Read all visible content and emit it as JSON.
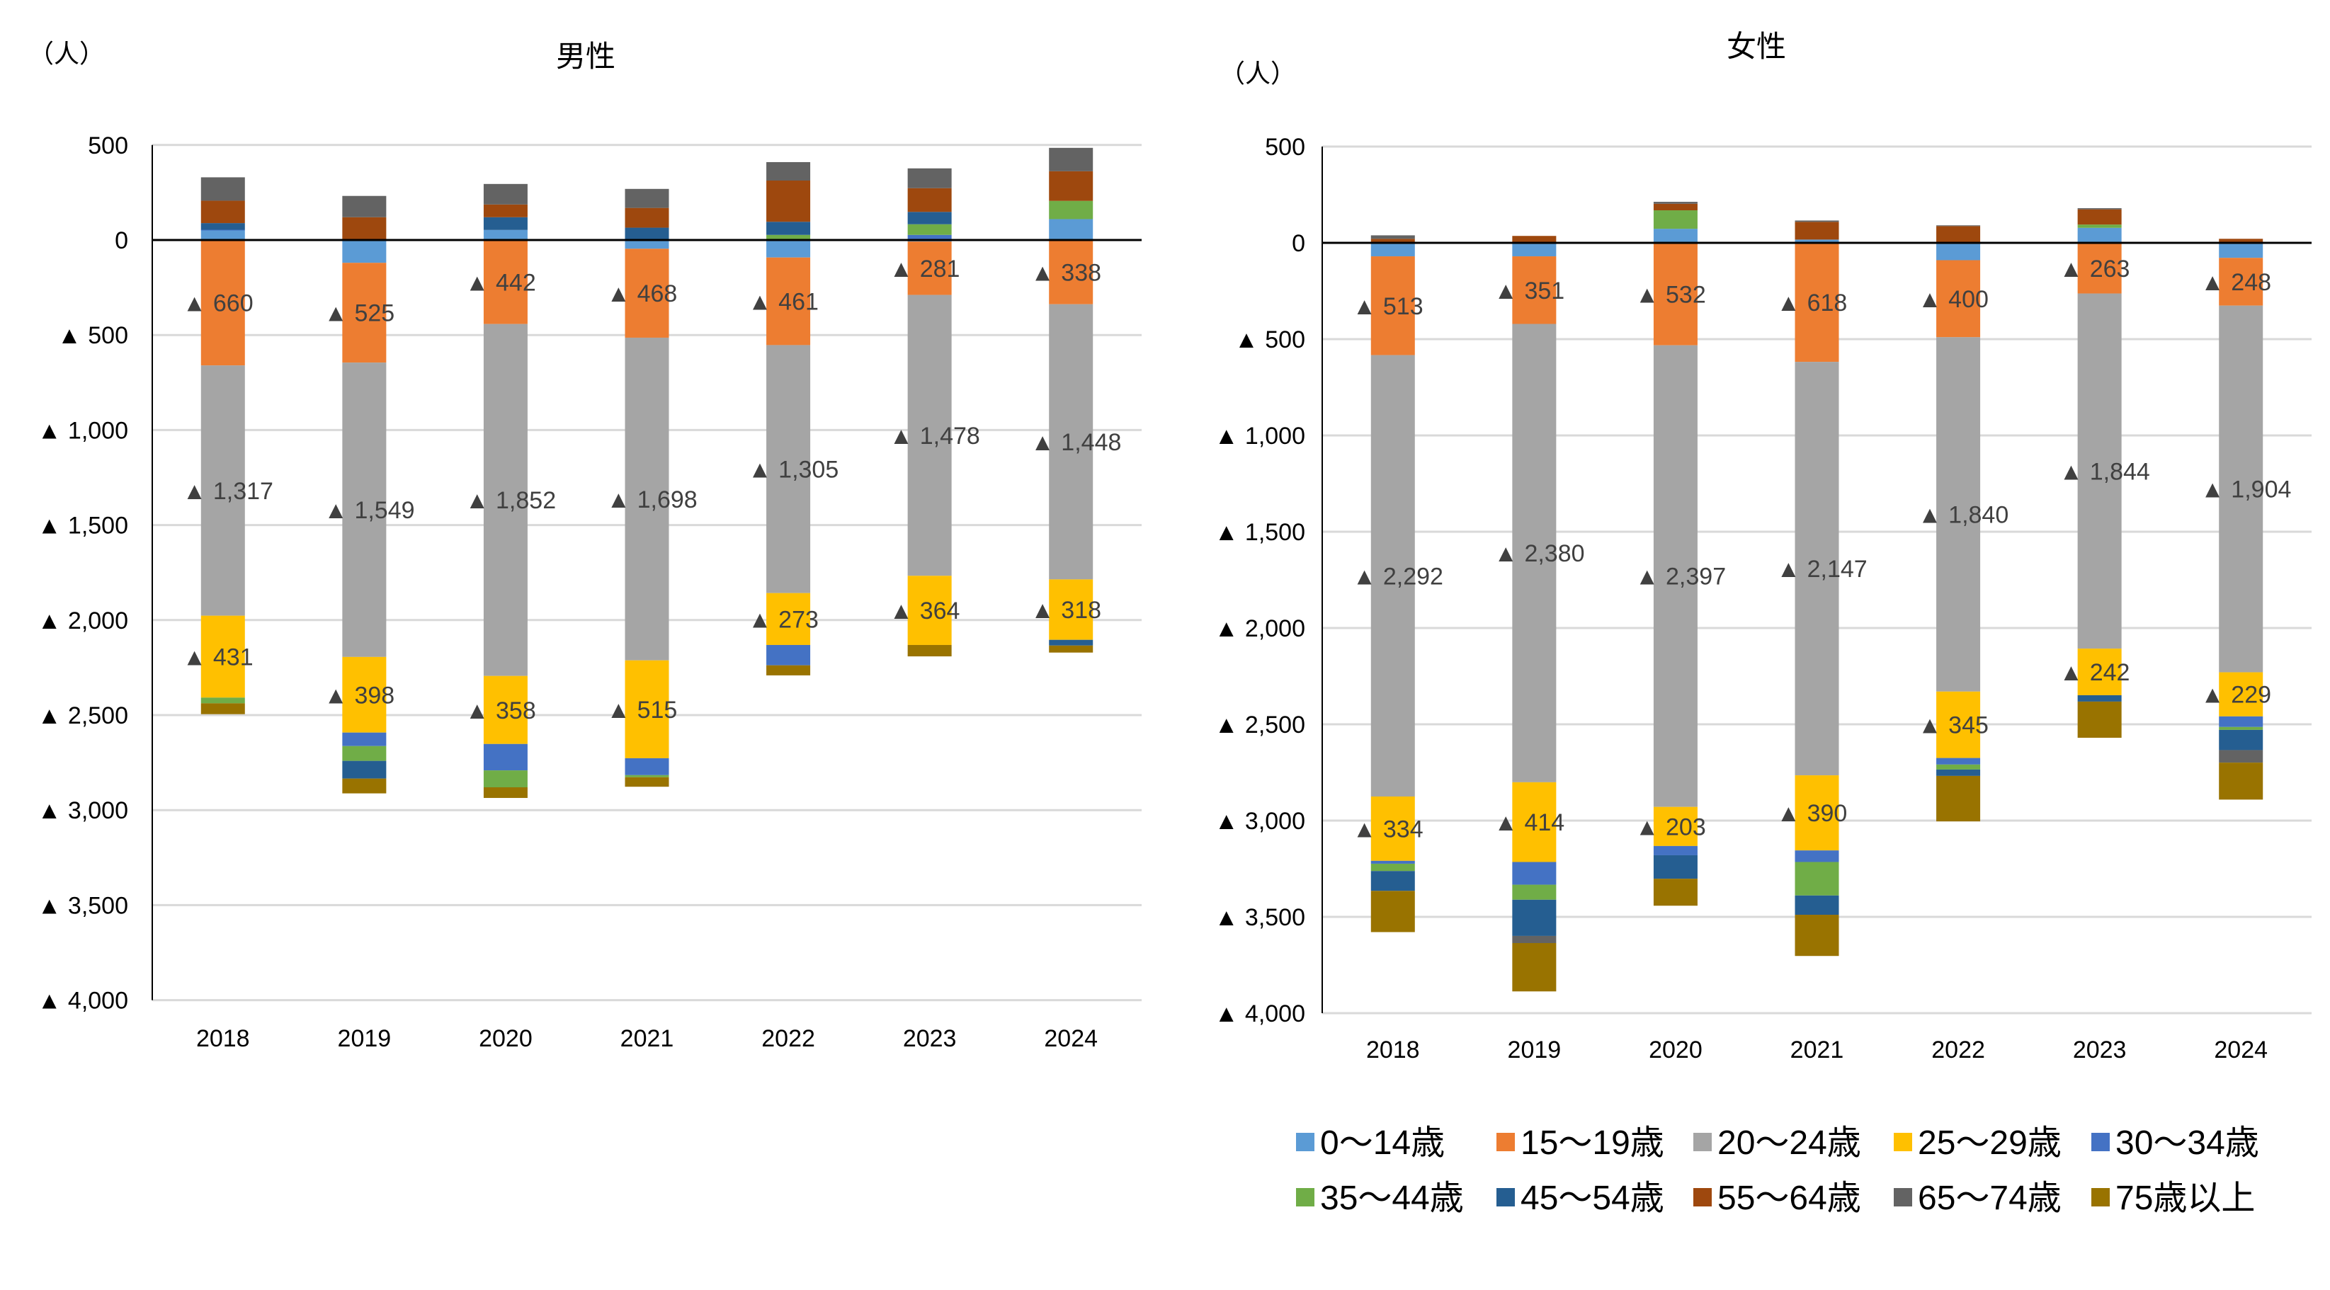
{
  "chart_data": [
    {
      "type": "bar",
      "stacked": true,
      "title": "男性",
      "unit_label": "（人）",
      "categories": [
        "2018",
        "2019",
        "2020",
        "2021",
        "2022",
        "2023",
        "2024"
      ],
      "ylim": [
        -4000,
        500
      ],
      "yticks": [
        500,
        0,
        -500,
        -1000,
        -1500,
        -2000,
        -2500,
        -3000,
        -3500,
        -4000
      ],
      "negative_prefix": "▲",
      "grid": true,
      "data_labels_series": [
        "15〜19歳",
        "20〜24歳",
        "25〜29歳"
      ],
      "series": [
        {
          "name": "0〜14歳",
          "values": [
            51,
            -120,
            53,
            -46,
            -92,
            -8,
            110
          ]
        },
        {
          "name": "15〜19歳",
          "values": [
            -660,
            -525,
            -442,
            -468,
            -461,
            -281,
            -338
          ]
        },
        {
          "name": "20〜24歳",
          "values": [
            -1317,
            -1549,
            -1852,
            -1698,
            -1305,
            -1478,
            -1448
          ]
        },
        {
          "name": "25〜29歳",
          "values": [
            -431,
            -398,
            -358,
            -515,
            -273,
            -364,
            -318
          ]
        },
        {
          "name": "30〜34歳",
          "values": [
            3,
            -71,
            -139,
            -89,
            -107,
            27,
            0
          ]
        },
        {
          "name": "35〜44歳",
          "values": [
            -30,
            -78,
            -89,
            -11,
            27,
            56,
            96
          ]
        },
        {
          "name": "45〜54歳",
          "values": [
            35,
            -93,
            67,
            65,
            69,
            65,
            -30
          ]
        },
        {
          "name": "55〜64歳",
          "values": [
            118,
            120,
            67,
            104,
            217,
            125,
            156
          ]
        },
        {
          "name": "65〜74歳",
          "values": [
            123,
            112,
            108,
            100,
            97,
            104,
            123
          ]
        },
        {
          "name": "75歳以上",
          "values": [
            -57,
            -78,
            -56,
            -50,
            -53,
            -60,
            -37
          ]
        }
      ]
    },
    {
      "type": "bar",
      "stacked": true,
      "title": "女性",
      "unit_label": "（人）",
      "categories": [
        "2018",
        "2019",
        "2020",
        "2021",
        "2022",
        "2023",
        "2024"
      ],
      "ylim": [
        -4000,
        500
      ],
      "yticks": [
        500,
        0,
        -500,
        -1000,
        -1500,
        -2000,
        -2500,
        -3000,
        -3500,
        -4000
      ],
      "negative_prefix": "▲",
      "grid": true,
      "data_labels_series": [
        "15〜19歳",
        "20〜24歳",
        "25〜29歳"
      ],
      "series": [
        {
          "name": "0〜14歳",
          "values": [
            -70,
            -70,
            73,
            17,
            -90,
            78,
            -78
          ]
        },
        {
          "name": "15〜19歳",
          "values": [
            -513,
            -351,
            -532,
            -618,
            -400,
            -263,
            -248
          ]
        },
        {
          "name": "20〜24歳",
          "values": [
            -2292,
            -2380,
            -2397,
            -2147,
            -1840,
            -1844,
            -1904
          ]
        },
        {
          "name": "25〜29歳",
          "values": [
            -334,
            -414,
            -203,
            -390,
            -345,
            -242,
            -229
          ]
        },
        {
          "name": "30〜34歳",
          "values": [
            -15,
            -118,
            -48,
            -60,
            -34,
            0,
            -55
          ]
        },
        {
          "name": "35〜44歳",
          "values": [
            -38,
            -78,
            96,
            -174,
            -26,
            17,
            -15
          ]
        },
        {
          "name": "45〜54歳",
          "values": [
            -103,
            -188,
            -122,
            -100,
            -33,
            -33,
            -105
          ]
        },
        {
          "name": "55〜64歳",
          "values": [
            21,
            36,
            34,
            92,
            87,
            79,
            21
          ]
        },
        {
          "name": "65〜74歳",
          "values": [
            18,
            -37,
            10,
            7,
            4,
            6,
            -65
          ]
        },
        {
          "name": "75歳以上",
          "values": [
            -214,
            -251,
            -140,
            -214,
            -236,
            -188,
            -192
          ]
        }
      ]
    }
  ],
  "legend": {
    "placement": "bottom-right",
    "items": [
      "0〜14歳",
      "15〜19歳",
      "20〜24歳",
      "25〜29歳",
      "30〜34歳",
      "35〜44歳",
      "45〜54歳",
      "55〜64歳",
      "65〜74歳",
      "75歳以上"
    ]
  },
  "colors": {
    "0〜14歳": "#5B9BD5",
    "15〜19歳": "#ED7D31",
    "20〜24歳": "#A5A5A5",
    "25〜29歳": "#FFC000",
    "30〜34歳": "#4472C4",
    "35〜44歳": "#70AD47",
    "45〜54歳": "#255E91",
    "55〜64歳": "#9E480E",
    "65〜74歳": "#636363",
    "75歳以上": "#997300",
    "gridline": "#D9D9D9",
    "data_label": "#404040"
  }
}
